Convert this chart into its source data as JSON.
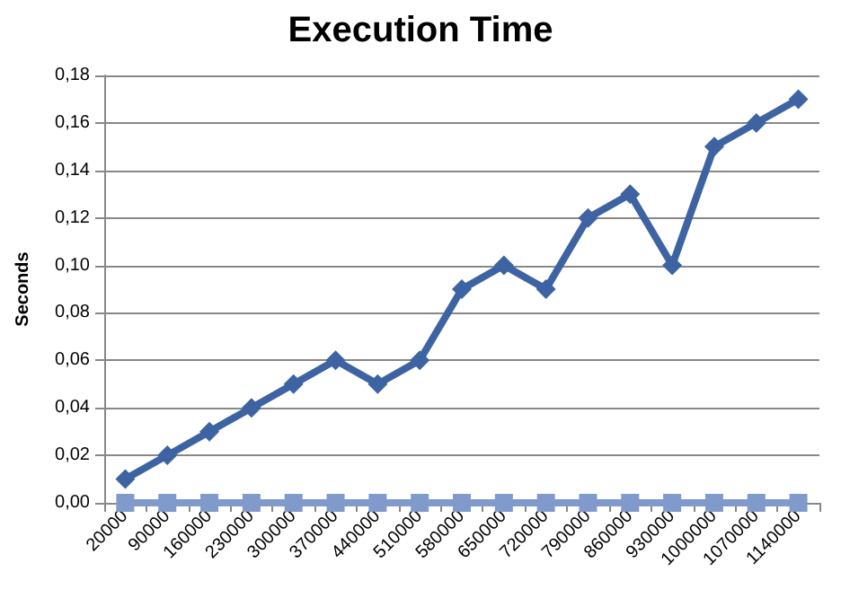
{
  "chart_data": {
    "type": "line",
    "title": "Execution Time",
    "ylabel": "Seconds",
    "categories": [
      "20000",
      "90000",
      "160000",
      "230000",
      "300000",
      "370000",
      "440000",
      "510000",
      "580000",
      "650000",
      "720000",
      "790000",
      "860000",
      "930000",
      "1000000",
      "1070000",
      "1140000"
    ],
    "series": [
      {
        "color": "#3d63a3",
        "marker": "diamond",
        "values": [
          0.01,
          0.02,
          0.03,
          0.04,
          0.05,
          0.06,
          0.05,
          0.06,
          0.09,
          0.1,
          0.09,
          0.12,
          0.13,
          0.1,
          0.15,
          0.16,
          0.17
        ]
      },
      {
        "color": "#7f9acb",
        "marker": "square",
        "values": [
          0,
          0,
          0,
          0,
          0,
          0,
          0,
          0,
          0,
          0,
          0,
          0,
          0,
          0,
          0,
          0,
          0
        ]
      }
    ],
    "ylim": [
      0,
      0.18
    ],
    "yticks": [
      {
        "value": 0,
        "label": "0,00"
      },
      {
        "value": 0.02,
        "label": "0,02"
      },
      {
        "value": 0.04,
        "label": "0,04"
      },
      {
        "value": 0.06,
        "label": "0,06"
      },
      {
        "value": 0.08,
        "label": "0,08"
      },
      {
        "value": 0.1,
        "label": "0,10"
      },
      {
        "value": 0.12,
        "label": "0,12"
      },
      {
        "value": 0.14,
        "label": "0,14"
      },
      {
        "value": 0.16,
        "label": "0,16"
      },
      {
        "value": 0.18,
        "label": "0,18"
      }
    ],
    "grid": "y",
    "line_style": "solid"
  }
}
